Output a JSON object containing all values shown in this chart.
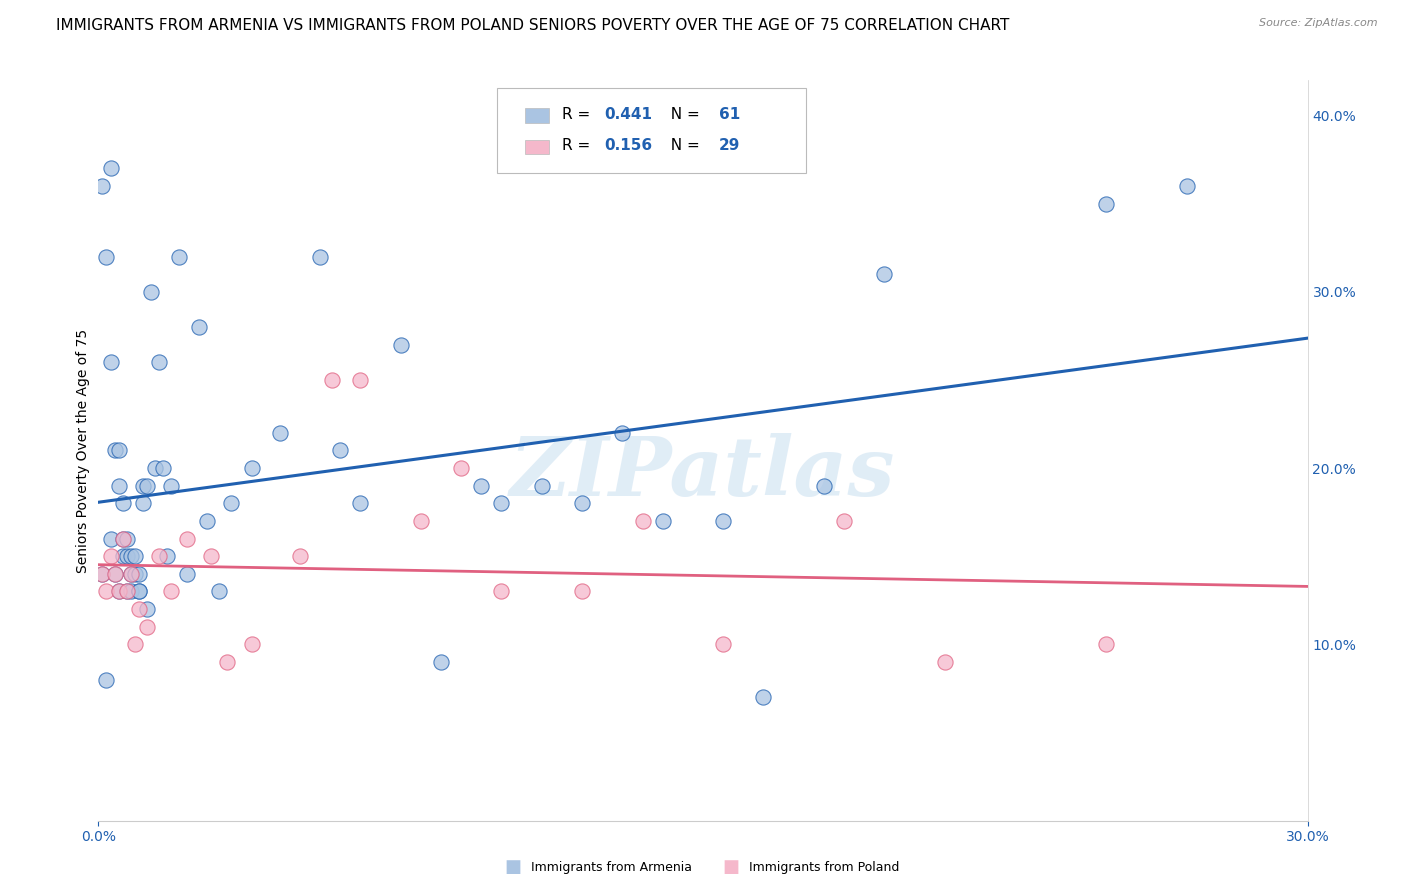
{
  "title": "IMMIGRANTS FROM ARMENIA VS IMMIGRANTS FROM POLAND SENIORS POVERTY OVER THE AGE OF 75 CORRELATION CHART",
  "source": "Source: ZipAtlas.com",
  "ylabel": "Seniors Poverty Over the Age of 75",
  "xlim": [
    0.0,
    0.3
  ],
  "ylim": [
    0.0,
    0.42
  ],
  "x_ticks": [
    0.0,
    0.3
  ],
  "x_tick_labels": [
    "0.0%",
    "30.0%"
  ],
  "y_ticks_right": [
    0.1,
    0.2,
    0.3,
    0.4
  ],
  "y_tick_labels_right": [
    "10.0%",
    "20.0%",
    "30.0%",
    "40.0%"
  ],
  "armenia_R": 0.441,
  "armenia_N": 61,
  "poland_R": 0.156,
  "poland_N": 29,
  "armenia_color": "#aac4e2",
  "armenia_line_color": "#2060b0",
  "poland_color": "#f5b8cb",
  "poland_line_color": "#e06080",
  "watermark": "ZIPatlas",
  "armenia_scatter_x": [
    0.001,
    0.001,
    0.002,
    0.002,
    0.003,
    0.003,
    0.003,
    0.004,
    0.004,
    0.005,
    0.005,
    0.005,
    0.006,
    0.006,
    0.006,
    0.007,
    0.007,
    0.007,
    0.008,
    0.008,
    0.008,
    0.009,
    0.009,
    0.01,
    0.01,
    0.01,
    0.011,
    0.011,
    0.012,
    0.012,
    0.013,
    0.014,
    0.015,
    0.016,
    0.017,
    0.018,
    0.02,
    0.022,
    0.025,
    0.027,
    0.03,
    0.033,
    0.038,
    0.045,
    0.055,
    0.06,
    0.065,
    0.075,
    0.085,
    0.095,
    0.1,
    0.11,
    0.12,
    0.13,
    0.14,
    0.155,
    0.165,
    0.18,
    0.195,
    0.25,
    0.27
  ],
  "armenia_scatter_y": [
    0.36,
    0.14,
    0.32,
    0.08,
    0.37,
    0.26,
    0.16,
    0.21,
    0.14,
    0.21,
    0.19,
    0.13,
    0.18,
    0.16,
    0.15,
    0.16,
    0.15,
    0.13,
    0.15,
    0.14,
    0.13,
    0.15,
    0.14,
    0.14,
    0.13,
    0.13,
    0.19,
    0.18,
    0.19,
    0.12,
    0.3,
    0.2,
    0.26,
    0.2,
    0.15,
    0.19,
    0.32,
    0.14,
    0.28,
    0.17,
    0.13,
    0.18,
    0.2,
    0.22,
    0.32,
    0.21,
    0.18,
    0.27,
    0.09,
    0.19,
    0.18,
    0.19,
    0.18,
    0.22,
    0.17,
    0.17,
    0.07,
    0.19,
    0.31,
    0.35,
    0.36
  ],
  "poland_scatter_x": [
    0.001,
    0.002,
    0.003,
    0.004,
    0.005,
    0.006,
    0.007,
    0.008,
    0.009,
    0.01,
    0.012,
    0.015,
    0.018,
    0.022,
    0.028,
    0.032,
    0.038,
    0.05,
    0.058,
    0.065,
    0.08,
    0.09,
    0.1,
    0.12,
    0.135,
    0.155,
    0.185,
    0.21,
    0.25
  ],
  "poland_scatter_y": [
    0.14,
    0.13,
    0.15,
    0.14,
    0.13,
    0.16,
    0.13,
    0.14,
    0.1,
    0.12,
    0.11,
    0.15,
    0.13,
    0.16,
    0.15,
    0.09,
    0.1,
    0.15,
    0.25,
    0.25,
    0.17,
    0.2,
    0.13,
    0.13,
    0.17,
    0.1,
    0.17,
    0.09,
    0.1
  ],
  "background_color": "#ffffff",
  "grid_color": "#d0d0d0"
}
